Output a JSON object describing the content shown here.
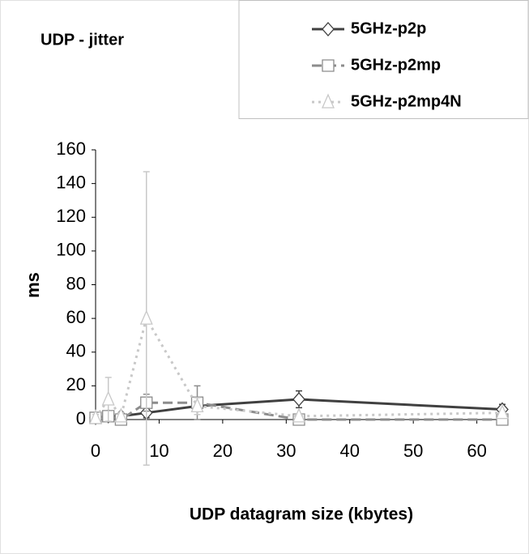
{
  "chart_data": {
    "type": "line",
    "title": "UDP - jitter",
    "x_label": "UDP datagram size (kbytes)",
    "y_label": "ms",
    "x": [
      0,
      2,
      4,
      8,
      16,
      32,
      64
    ],
    "series": [
      {
        "name": "5GHz-p2p",
        "color": "#404040",
        "line_style": "solid",
        "marker": "diamond",
        "values": [
          1,
          2,
          2,
          4,
          8,
          12,
          6
        ],
        "errors": [
          2,
          3,
          2,
          3,
          3,
          5,
          3
        ]
      },
      {
        "name": "5GHz-p2mp",
        "color": "#8c8c8c",
        "line_style": "dashed",
        "marker": "square",
        "values": [
          1,
          2,
          0,
          10,
          10,
          0,
          0
        ],
        "errors": [
          2,
          2,
          1,
          5,
          10,
          3,
          2
        ]
      },
      {
        "name": "5GHz-p2mp4N",
        "color": "#c8c8c8",
        "line_style": "dotted",
        "marker": "triangle",
        "values": [
          1,
          12,
          2,
          60,
          8,
          2,
          4
        ],
        "errors": [
          2,
          13,
          2,
          87,
          5,
          1,
          1
        ]
      }
    ],
    "xlim": [
      0,
      64
    ],
    "xticks": [
      0,
      10,
      20,
      30,
      40,
      50,
      60
    ],
    "ylim": [
      0,
      160
    ],
    "yticks": [
      0,
      20,
      40,
      60,
      80,
      100,
      120,
      140,
      160
    ],
    "grid": false
  }
}
